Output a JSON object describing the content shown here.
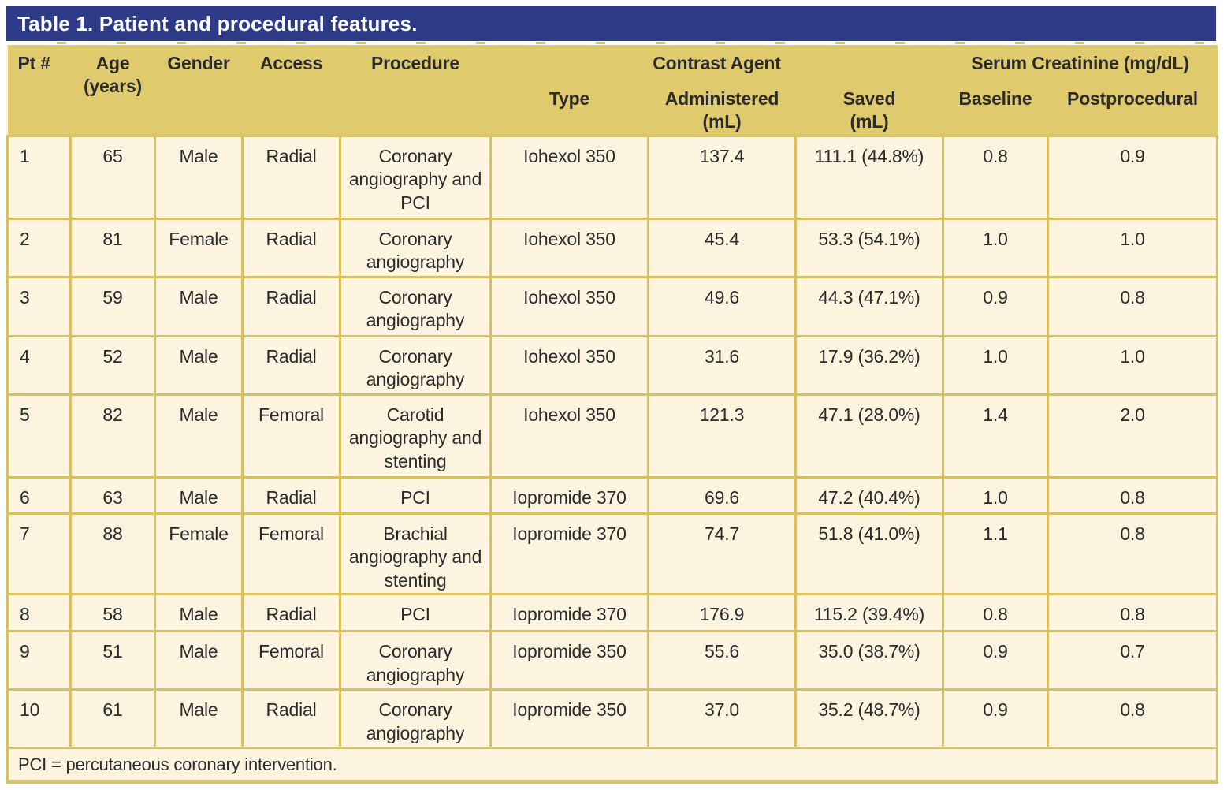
{
  "title": "Table 1. Patient and procedural features.",
  "header": {
    "pt": "Pt #",
    "age": "Age",
    "age_unit": "(years)",
    "gender": "Gender",
    "access": "Access",
    "procedure": "Procedure",
    "contrast_agent": "Contrast Agent",
    "serum_creatinine": "Serum Creatinine (mg/dL)",
    "type": "Type",
    "administered": "Administered",
    "administered_unit": "(mL)",
    "saved": "Saved",
    "saved_unit": "(mL)",
    "baseline": "Baseline",
    "postprocedural": "Postprocedural"
  },
  "rows": [
    {
      "pt": "1",
      "age": "65",
      "gender": "Male",
      "access": "Radial",
      "procedure": "Coronary angiography and PCI",
      "type": "Iohexol 350",
      "administered": "137.4",
      "saved": "111.1 (44.8%)",
      "baseline": "0.8",
      "postprocedural": "0.9"
    },
    {
      "pt": "2",
      "age": "81",
      "gender": "Female",
      "access": "Radial",
      "procedure": "Coronary angiography",
      "type": "Iohexol 350",
      "administered": "45.4",
      "saved": "53.3 (54.1%)",
      "baseline": "1.0",
      "postprocedural": "1.0"
    },
    {
      "pt": "3",
      "age": "59",
      "gender": "Male",
      "access": "Radial",
      "procedure": "Coronary angiography",
      "type": "Iohexol 350",
      "administered": "49.6",
      "saved": "44.3 (47.1%)",
      "baseline": "0.9",
      "postprocedural": "0.8"
    },
    {
      "pt": "4",
      "age": "52",
      "gender": "Male",
      "access": "Radial",
      "procedure": "Coronary angiography",
      "type": "Iohexol 350",
      "administered": "31.6",
      "saved": "17.9 (36.2%)",
      "baseline": "1.0",
      "postprocedural": "1.0"
    },
    {
      "pt": "5",
      "age": "82",
      "gender": "Male",
      "access": "Femoral",
      "procedure": "Carotid angiography and stenting",
      "type": "Iohexol 350",
      "administered": "121.3",
      "saved": "47.1 (28.0%)",
      "baseline": "1.4",
      "postprocedural": "2.0"
    },
    {
      "pt": "6",
      "age": "63",
      "gender": "Male",
      "access": "Radial",
      "procedure": "PCI",
      "type": "Iopromide 370",
      "administered": "69.6",
      "saved": "47.2 (40.4%)",
      "baseline": "1.0",
      "postprocedural": "0.8"
    },
    {
      "pt": "7",
      "age": "88",
      "gender": "Female",
      "access": "Femoral",
      "procedure": "Brachial angiography and stenting",
      "type": "Iopromide 370",
      "administered": "74.7",
      "saved": "51.8 (41.0%)",
      "baseline": "1.1",
      "postprocedural": "0.8"
    },
    {
      "pt": "8",
      "age": "58",
      "gender": "Male",
      "access": "Radial",
      "procedure": "PCI",
      "type": "Iopromide 370",
      "administered": "176.9",
      "saved": "115.2 (39.4%)",
      "baseline": "0.8",
      "postprocedural": "0.8"
    },
    {
      "pt": "9",
      "age": "51",
      "gender": "Male",
      "access": "Femoral",
      "procedure": "Coronary angiography",
      "type": "Iopromide 350",
      "administered": "55.6",
      "saved": "35.0 (38.7%)",
      "baseline": "0.9",
      "postprocedural": "0.7"
    },
    {
      "pt": "10",
      "age": "61",
      "gender": "Male",
      "access": "Radial",
      "procedure": "Coronary angiography",
      "type": "Iopromide 350",
      "administered": "37.0",
      "saved": "35.2 (48.7%)",
      "baseline": "0.9",
      "postprocedural": "0.8"
    }
  ],
  "footnote": "PCI = percutaneous coronary intervention.",
  "colors": {
    "navy": "#2d3a88",
    "gold": "#e0ca6e",
    "cream": "#fdf4e0",
    "line": "#d8c05e",
    "ink": "#2b2b2b"
  }
}
